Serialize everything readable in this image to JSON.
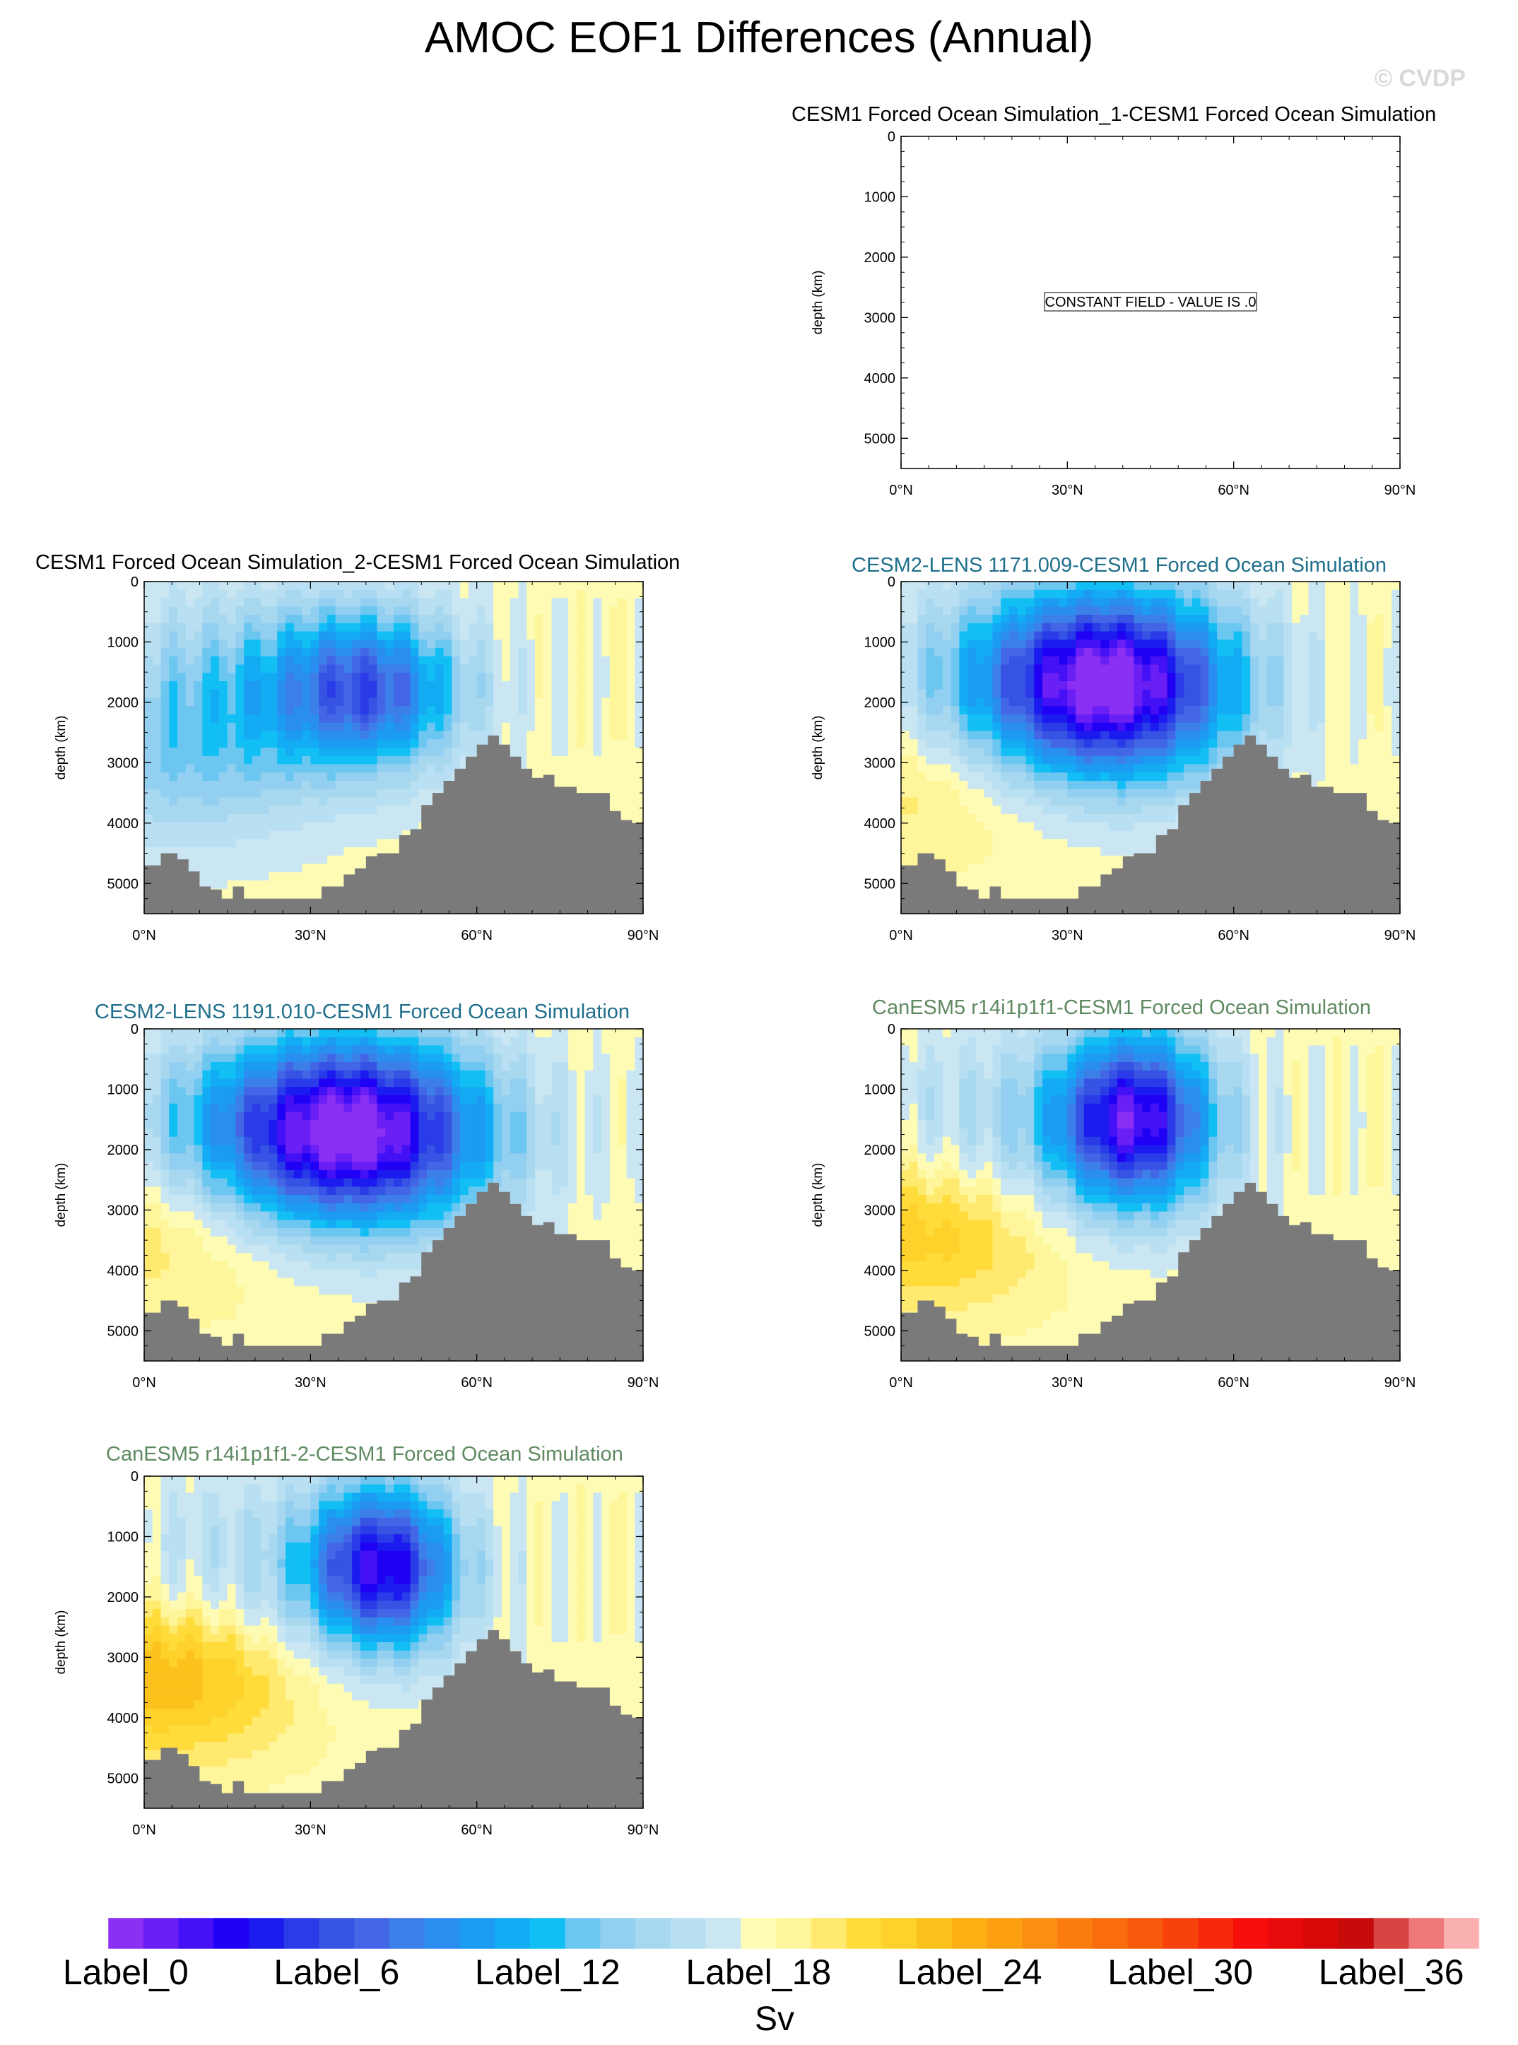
{
  "title": "AMOC EOF1 Differences (Annual)",
  "watermark": "© CVDP",
  "colors": {
    "land": "#7a7a7a",
    "title_black": "#000000",
    "title_cesm2": "#1f6f8b",
    "title_canesm": "#5f8a61",
    "const_box_border": "#000000"
  },
  "axes": {
    "ylabel": "depth (km)",
    "yticks": [
      "0",
      "1000",
      "2000",
      "3000",
      "4000",
      "5000"
    ],
    "ytick_values": [
      0,
      1000,
      2000,
      3000,
      4000,
      5000
    ],
    "xticks": [
      "0°N",
      "30°N",
      "60°N",
      "90°N"
    ],
    "xtick_values": [
      0,
      30,
      60,
      90
    ],
    "ylim": [
      0,
      5500
    ],
    "xlim": [
      0,
      90
    ]
  },
  "panels": [
    {
      "id": "p1",
      "title": "CESM1 Forced Ocean Simulation_1-CESM1 Forced Ocean Simulation",
      "title_color": "title_black",
      "constant": true,
      "constant_text": "CONSTANT FIELD - VALUE IS .0",
      "show_ylabel": true
    },
    {
      "id": "p2",
      "title": "CESM1 Forced Ocean Simulation_2-CESM1 Forced Ocean Simulation",
      "title_color": "title_black",
      "constant": false,
      "cell_x": 40.5,
      "cell_y": 1800,
      "cell_rx": 16,
      "cell_ry": 1200,
      "strength": 0.55,
      "south_bias": -0.35,
      "show_ylabel": true
    },
    {
      "id": "p3",
      "title": "CESM2-LENS 1171.009-CESM1 Forced Ocean Simulation",
      "title_color": "title_cesm2",
      "constant": false,
      "cell_x": 38,
      "cell_y": 1700,
      "cell_rx": 22,
      "cell_ry": 1500,
      "strength": 1.0,
      "south_bias": 0.3,
      "show_ylabel": true
    },
    {
      "id": "p4",
      "title": "CESM2-LENS 1191.010-CESM1 Forced Ocean Simulation",
      "title_color": "title_cesm2",
      "constant": false,
      "cell_x": 38,
      "cell_y": 1700,
      "cell_rx": 24,
      "cell_ry": 1500,
      "strength": 1.0,
      "south_bias": 0.35,
      "show_ylabel": true
    },
    {
      "id": "p5",
      "title": "CanESM5 r14i1p1f1-CESM1 Forced Ocean Simulation",
      "title_color": "title_canesm",
      "constant": false,
      "cell_x": 42,
      "cell_y": 1500,
      "cell_rx": 14,
      "cell_ry": 1400,
      "strength": 0.9,
      "south_bias": 0.55,
      "show_ylabel": true
    },
    {
      "id": "p6",
      "title": "CanESM5 r14i1p1f1-2-CESM1 Forced Ocean Simulation",
      "title_color": "title_canesm",
      "constant": false,
      "cell_x": 43,
      "cell_y": 1500,
      "cell_rx": 13,
      "cell_ry": 1300,
      "strength": 0.85,
      "south_bias": 0.7,
      "show_ylabel": true
    }
  ],
  "bathymetry": {
    "x": [
      0,
      3,
      6,
      8,
      10,
      12,
      14,
      16,
      18,
      20,
      22,
      24,
      26,
      28,
      30,
      32,
      34,
      36,
      38,
      40,
      42,
      44,
      46,
      48,
      50,
      52,
      54,
      56,
      58,
      60,
      62,
      63,
      64,
      66,
      68,
      70,
      72,
      74,
      76,
      78,
      80,
      82,
      84,
      86,
      88,
      90
    ],
    "depth": [
      4700,
      4500,
      4600,
      4800,
      5050,
      5100,
      5250,
      5050,
      5250,
      5250,
      5250,
      5250,
      5250,
      5250,
      5250,
      5050,
      5050,
      4850,
      4750,
      4550,
      4500,
      4500,
      4200,
      4100,
      3700,
      3500,
      3300,
      3100,
      2900,
      2700,
      2550,
      2550,
      2700,
      2900,
      3100,
      3250,
      3200,
      3400,
      3400,
      3500,
      3500,
      3500,
      3800,
      3950,
      4000,
      4000
    ]
  },
  "colorbar": {
    "label_title": "Sv",
    "labels": [
      "Label_0",
      "Label_6",
      "Label_12",
      "Label_18",
      "Label_24",
      "Label_30",
      "Label_36"
    ],
    "label_index": [
      0,
      6,
      12,
      18,
      24,
      30,
      36
    ],
    "colors": [
      "#8b2ff5",
      "#6a1ff5",
      "#4410f5",
      "#1f00f5",
      "#1b1bf0",
      "#2a3be8",
      "#3653e3",
      "#4266e6",
      "#3d7fe8",
      "#2a8ef0",
      "#1c9bf3",
      "#14abf5",
      "#12bff5",
      "#6cc7f0",
      "#93cff0",
      "#a8d8f0",
      "#b8e0f2",
      "#c9e6f2",
      "#fefcb4",
      "#fff59b",
      "#ffe96e",
      "#ffdc3a",
      "#fed22b",
      "#fdc11b",
      "#fdb014",
      "#fca012",
      "#fb8f12",
      "#fb7d0f",
      "#fa6c0e",
      "#f85a0c",
      "#f7420b",
      "#f62a0a",
      "#f50e0a",
      "#e80a0a",
      "#d70808",
      "#c70a0a",
      "#d84444",
      "#ee7878",
      "#fbb0b0"
    ]
  }
}
